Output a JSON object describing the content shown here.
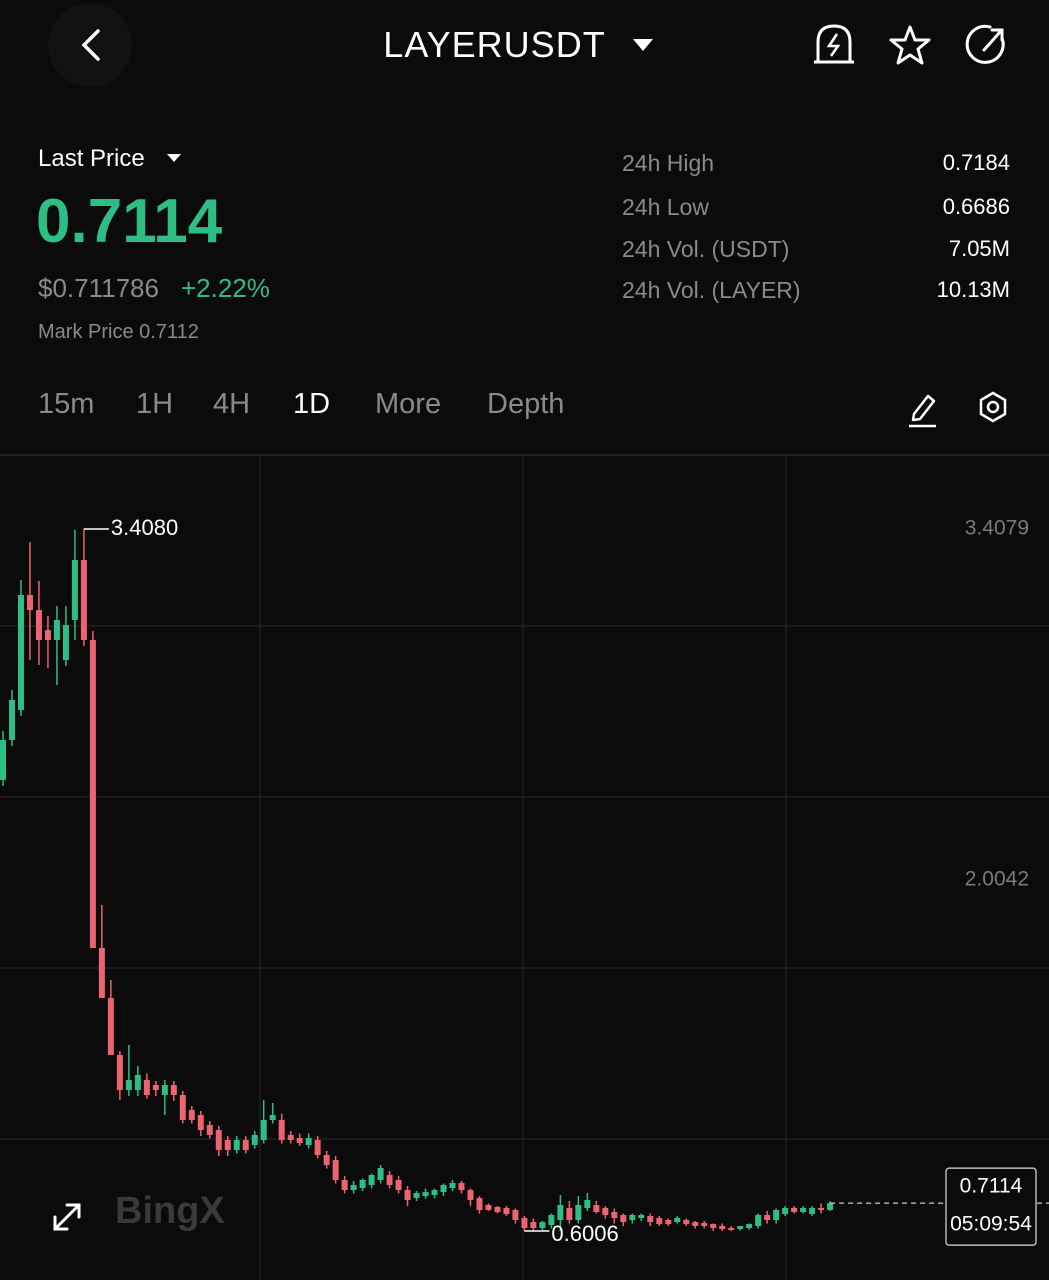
{
  "header": {
    "symbol": "LAYERUSDT"
  },
  "price_panel": {
    "label": "Last Price",
    "last_price": "0.7114",
    "usd_price": "$0.711786",
    "change": "+2.22%",
    "mark_price": "Mark Price 0.7112"
  },
  "stats": [
    {
      "label": "24h High",
      "value": "0.7184"
    },
    {
      "label": "24h Low",
      "value": "0.6686"
    },
    {
      "label": "24h Vol. (USDT)",
      "value": "7.05M"
    },
    {
      "label": "24h Vol. (LAYER)",
      "value": "10.13M"
    }
  ],
  "tabs": [
    "15m",
    "1H",
    "4H",
    "1D",
    "More",
    "Depth"
  ],
  "active_tab": 3,
  "watermark": "BingX",
  "chart_data": {
    "type": "candlestick",
    "up_color": "#2ebd85",
    "down_color": "#eb6470",
    "ylim": [
      0.404,
      3.704
    ],
    "yticks": [
      3.4079,
      2.0042
    ],
    "high_label": "3.4080",
    "low_label": "0.6006",
    "last_price_label": "0.7114",
    "countdown": "05:09:54",
    "candles": [
      [
        2.404,
        2.6,
        2.38,
        2.564
      ],
      [
        2.564,
        2.764,
        2.54,
        2.724
      ],
      [
        2.684,
        3.204,
        2.66,
        3.144
      ],
      [
        3.144,
        3.356,
        2.884,
        3.084
      ],
      [
        3.084,
        3.2,
        2.864,
        2.964
      ],
      [
        3.004,
        3.06,
        2.852,
        2.964
      ],
      [
        2.964,
        3.1,
        2.784,
        3.044
      ],
      [
        2.884,
        3.1,
        2.86,
        3.024
      ],
      [
        3.044,
        3.404,
        2.964,
        3.284
      ],
      [
        3.284,
        3.408,
        2.94,
        2.964
      ],
      [
        2.964,
        3.0,
        1.732,
        1.732
      ],
      [
        1.732,
        1.904,
        1.532,
        1.532
      ],
      [
        1.532,
        1.604,
        1.304,
        1.304
      ],
      [
        1.304,
        1.32,
        1.124,
        1.164
      ],
      [
        1.164,
        1.344,
        1.14,
        1.204
      ],
      [
        1.164,
        1.26,
        1.14,
        1.224
      ],
      [
        1.204,
        1.23,
        1.13,
        1.144
      ],
      [
        1.184,
        1.2,
        1.14,
        1.164
      ],
      [
        1.144,
        1.204,
        1.064,
        1.184
      ],
      [
        1.184,
        1.2,
        1.12,
        1.144
      ],
      [
        1.144,
        1.16,
        1.03,
        1.044
      ],
      [
        1.084,
        1.1,
        1.03,
        1.044
      ],
      [
        1.064,
        1.08,
        0.98,
        1.004
      ],
      [
        1.024,
        1.04,
        0.97,
        0.984
      ],
      [
        1.004,
        1.02,
        0.9,
        0.924
      ],
      [
        0.964,
        0.98,
        0.9,
        0.924
      ],
      [
        0.924,
        0.98,
        0.91,
        0.964
      ],
      [
        0.964,
        0.98,
        0.91,
        0.924
      ],
      [
        0.944,
        1.0,
        0.93,
        0.984
      ],
      [
        0.964,
        1.124,
        0.95,
        1.044
      ],
      [
        1.044,
        1.112,
        1.03,
        1.064
      ],
      [
        1.044,
        1.07,
        0.95,
        0.964
      ],
      [
        0.984,
        1.0,
        0.95,
        0.964
      ],
      [
        0.972,
        0.99,
        0.94,
        0.952
      ],
      [
        0.944,
        0.99,
        0.93,
        0.972
      ],
      [
        0.964,
        0.98,
        0.89,
        0.904
      ],
      [
        0.904,
        0.92,
        0.85,
        0.864
      ],
      [
        0.884,
        0.9,
        0.79,
        0.804
      ],
      [
        0.804,
        0.82,
        0.75,
        0.764
      ],
      [
        0.764,
        0.8,
        0.75,
        0.784
      ],
      [
        0.772,
        0.81,
        0.76,
        0.804
      ],
      [
        0.784,
        0.83,
        0.77,
        0.824
      ],
      [
        0.804,
        0.864,
        0.79,
        0.852
      ],
      [
        0.824,
        0.84,
        0.77,
        0.784
      ],
      [
        0.804,
        0.82,
        0.75,
        0.764
      ],
      [
        0.764,
        0.78,
        0.7,
        0.724
      ],
      [
        0.732,
        0.76,
        0.72,
        0.752
      ],
      [
        0.74,
        0.77,
        0.73,
        0.756
      ],
      [
        0.744,
        0.77,
        0.73,
        0.764
      ],
      [
        0.756,
        0.79,
        0.74,
        0.784
      ],
      [
        0.772,
        0.804,
        0.76,
        0.792
      ],
      [
        0.792,
        0.8,
        0.75,
        0.764
      ],
      [
        0.764,
        0.77,
        0.7,
        0.724
      ],
      [
        0.732,
        0.74,
        0.67,
        0.684
      ],
      [
        0.704,
        0.71,
        0.68,
        0.684
      ],
      [
        0.696,
        0.7,
        0.67,
        0.676
      ],
      [
        0.692,
        0.7,
        0.66,
        0.668
      ],
      [
        0.684,
        0.69,
        0.63,
        0.644
      ],
      [
        0.652,
        0.66,
        0.6,
        0.612
      ],
      [
        0.636,
        0.65,
        0.6,
        0.612
      ],
      [
        0.612,
        0.64,
        0.6,
        0.636
      ],
      [
        0.624,
        0.67,
        0.61,
        0.664
      ],
      [
        0.644,
        0.744,
        0.6,
        0.704
      ],
      [
        0.692,
        0.72,
        0.63,
        0.644
      ],
      [
        0.644,
        0.74,
        0.63,
        0.704
      ],
      [
        0.692,
        0.752,
        0.68,
        0.724
      ],
      [
        0.704,
        0.72,
        0.67,
        0.676
      ],
      [
        0.692,
        0.7,
        0.65,
        0.664
      ],
      [
        0.676,
        0.69,
        0.63,
        0.652
      ],
      [
        0.664,
        0.67,
        0.62,
        0.636
      ],
      [
        0.644,
        0.67,
        0.63,
        0.664
      ],
      [
        0.652,
        0.67,
        0.64,
        0.664
      ],
      [
        0.66,
        0.67,
        0.62,
        0.636
      ],
      [
        0.652,
        0.66,
        0.62,
        0.628
      ],
      [
        0.644,
        0.65,
        0.62,
        0.628
      ],
      [
        0.636,
        0.66,
        0.63,
        0.652
      ],
      [
        0.644,
        0.65,
        0.62,
        0.628
      ],
      [
        0.636,
        0.64,
        0.61,
        0.62
      ],
      [
        0.632,
        0.64,
        0.61,
        0.62
      ],
      [
        0.628,
        0.63,
        0.6,
        0.612
      ],
      [
        0.62,
        0.63,
        0.6,
        0.608
      ],
      [
        0.612,
        0.62,
        0.6006,
        0.604
      ],
      [
        0.608,
        0.62,
        0.602,
        0.62
      ],
      [
        0.612,
        0.63,
        0.605,
        0.628
      ],
      [
        0.62,
        0.67,
        0.61,
        0.664
      ],
      [
        0.664,
        0.68,
        0.63,
        0.644
      ],
      [
        0.644,
        0.69,
        0.63,
        0.684
      ],
      [
        0.668,
        0.7,
        0.66,
        0.692
      ],
      [
        0.692,
        0.7,
        0.67,
        0.676
      ],
      [
        0.676,
        0.7,
        0.67,
        0.692
      ],
      [
        0.668,
        0.7,
        0.66,
        0.692
      ],
      [
        0.692,
        0.71,
        0.67,
        0.684
      ],
      [
        0.684,
        0.72,
        0.68,
        0.7114
      ]
    ]
  }
}
